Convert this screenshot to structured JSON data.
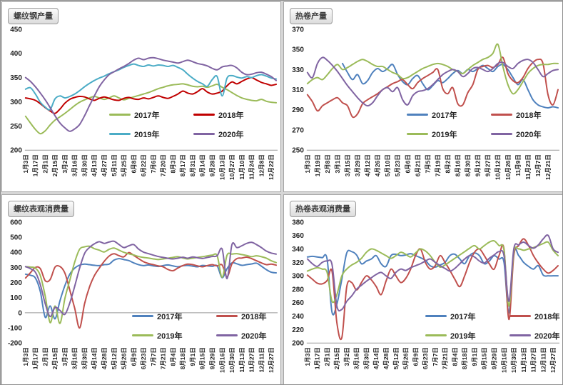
{
  "chart_data": [
    {
      "type": "line",
      "title": "螺纹钢产量",
      "ylim": [
        200,
        450
      ],
      "y_ticks": [
        450,
        400,
        350,
        300,
        250,
        200
      ],
      "axis_line_value": 200,
      "grid": false,
      "legend_position": "inside-lower-center",
      "x": [
        "1月3日",
        "1月17日",
        "2月1日",
        "2月15日",
        "3月2日",
        "3月16日",
        "3月30日",
        "4月13日",
        "4月27日",
        "5月11日",
        "5月25日",
        "6月8日",
        "6月22日",
        "7月6日",
        "7月20日",
        "8月3日",
        "8月17日",
        "8月31日",
        "9月14日",
        "9月28日",
        "10月13日",
        "10月27日",
        "11月10日",
        "11月24日",
        "12月8日",
        "12月22日"
      ],
      "points_per_label": 2,
      "series": [
        {
          "name": "2017年",
          "color": "#9BBB59",
          "values": [
            270,
            256,
            243,
            234,
            240,
            252,
            262,
            269,
            276,
            284,
            292,
            299,
            304,
            308,
            311,
            308,
            305,
            308,
            312,
            308,
            304,
            307,
            310,
            313,
            316,
            319,
            323,
            327,
            330,
            333,
            335,
            336,
            337,
            335,
            332,
            331,
            332,
            330,
            333,
            336,
            330,
            325,
            319,
            313,
            308,
            305,
            303,
            302,
            305,
            301,
            299,
            298
          ]
        },
        {
          "name": "2018年",
          "color": "#C00000",
          "values": [
            308,
            306,
            303,
            296,
            288,
            281,
            276,
            285,
            297,
            305,
            309,
            311,
            310,
            306,
            303,
            307,
            310,
            307,
            304,
            303,
            307,
            309,
            306,
            305,
            308,
            306,
            309,
            312,
            309,
            307,
            311,
            316,
            322,
            318,
            316,
            321,
            327,
            320,
            316,
            318,
            322,
            333,
            341,
            337,
            342,
            347,
            350,
            345,
            340,
            337,
            334,
            336
          ]
        },
        {
          "name": "2019年",
          "color": "#4BACC6",
          "values": [
            326,
            329,
            316,
            299,
            289,
            284,
            306,
            312,
            308,
            311,
            316,
            323,
            331,
            338,
            344,
            349,
            353,
            358,
            362,
            366,
            371,
            375,
            378,
            375,
            373,
            376,
            374,
            376,
            375,
            373,
            375,
            371,
            366,
            357,
            349,
            342,
            337,
            332,
            346,
            352,
            312,
            349,
            354,
            351,
            349,
            352,
            350,
            354,
            356,
            353,
            349,
            347
          ]
        },
        {
          "name": "2020年",
          "color": "#8064A2",
          "values": [
            350,
            342,
            331,
            318,
            304,
            288,
            271,
            256,
            246,
            239,
            244,
            253,
            271,
            292,
            312,
            331,
            345,
            356,
            362,
            368,
            373,
            379,
            386,
            390,
            387,
            390,
            391,
            389,
            386,
            384,
            382,
            380,
            383,
            386,
            383,
            379,
            377,
            374,
            369,
            366,
            372,
            374,
            375,
            370,
            361,
            356,
            357,
            360,
            361,
            357,
            352,
            344
          ]
        }
      ]
    },
    {
      "type": "line",
      "title": "热卷产量",
      "ylim": [
        250,
        370
      ],
      "y_ticks": [
        370,
        350,
        330,
        310,
        290,
        270,
        250
      ],
      "axis_line_value": 250,
      "grid": false,
      "legend_position": "inside-lower-center",
      "x": [
        "1月3日",
        "1月19日",
        "2月8日",
        "3月1日",
        "3月15日",
        "3月29日",
        "4月12日",
        "4月26日",
        "5月10日",
        "5月23日",
        "6月6日",
        "6月21日",
        "7月5日",
        "7月19日",
        "8月2日",
        "8月16日",
        "8月30日",
        "9月12日",
        "9月27日",
        "10月12日",
        "10月26日",
        "11月9日",
        "11月23日",
        "12月7日",
        "12月21日"
      ],
      "points_per_label": 2,
      "series": [
        {
          "name": "2017年",
          "color": "#4F81BD",
          "values": [
            null,
            null,
            null,
            null,
            null,
            null,
            null,
            336,
            327,
            320,
            325,
            316,
            319,
            327,
            331,
            328,
            331,
            335,
            325,
            318,
            315,
            321,
            324,
            316,
            310,
            314,
            319,
            317,
            321,
            326,
            329,
            326,
            330,
            328,
            331,
            334,
            331,
            328,
            333,
            335,
            330,
            322,
            315,
            320,
            310,
            300,
            295,
            293,
            292,
            293,
            292
          ]
        },
        {
          "name": "2018年",
          "color": "#C0504D",
          "values": [
            305,
            298,
            289,
            294,
            297,
            300,
            302,
            297,
            294,
            283,
            286,
            296,
            300,
            303,
            306,
            310,
            313,
            316,
            318,
            320,
            315,
            311,
            317,
            321,
            324,
            327,
            330,
            311,
            306,
            312,
            296,
            295,
            307,
            315,
            330,
            333,
            334,
            332,
            335,
            342,
            326,
            319,
            317,
            322,
            331,
            337,
            340,
            336,
            305,
            295,
            310
          ]
        },
        {
          "name": "2019年",
          "color": "#9BBB59",
          "values": [
            316,
            320,
            322,
            320,
            325,
            331,
            335,
            330,
            332,
            335,
            338,
            340,
            338,
            335,
            333,
            333,
            330,
            327,
            325,
            321,
            322,
            325,
            328,
            331,
            333,
            335,
            336,
            335,
            333,
            330,
            328,
            326,
            330,
            334,
            337,
            340,
            342,
            346,
            355,
            333,
            315,
            306,
            310,
            318,
            326,
            331,
            334,
            335,
            335,
            336,
            336
          ]
        },
        {
          "name": "2020年",
          "color": "#8064A2",
          "values": [
            327,
            322,
            336,
            342,
            339,
            334,
            328,
            321,
            314,
            308,
            302,
            297,
            294,
            297,
            304,
            310,
            312,
            308,
            312,
            300,
            295,
            304,
            308,
            309,
            311,
            315,
            320,
            325,
            328,
            330,
            328,
            323,
            326,
            331,
            332,
            330,
            328,
            331,
            336,
            337,
            333,
            331,
            336,
            339,
            340,
            337,
            330,
            323,
            326,
            329,
            330
          ]
        }
      ]
    },
    {
      "type": "line",
      "title": "螺纹表观消费量",
      "ylim": [
        -200,
        600
      ],
      "y_ticks": [
        600,
        500,
        400,
        300,
        200,
        100,
        0,
        -100,
        -200
      ],
      "axis_line_value": 0,
      "grid": false,
      "legend_position": "inside-lower-center",
      "x": [
        "1月3日",
        "1月17日",
        "2月1日",
        "2月15日",
        "3月2日",
        "3月16日",
        "3月30日",
        "4月14日",
        "4月28日",
        "5月12日",
        "5月26日",
        "6月9日",
        "6月23日",
        "7月7日",
        "7月21日",
        "8月4日",
        "8月18日",
        "9月1日",
        "9月15日",
        "9月29日",
        "10月16日",
        "10月30日",
        "11月13日",
        "11月27日",
        "12月11日",
        "12月27日"
      ],
      "points_per_label": 2,
      "series": [
        {
          "name": "2017年",
          "color": "#4F81BD",
          "values": [
            255,
            248,
            230,
            140,
            -30,
            45,
            -40,
            80,
            180,
            255,
            295,
            315,
            322,
            318,
            314,
            312,
            318,
            322,
            348,
            358,
            352,
            345,
            330,
            318,
            312,
            316,
            310,
            306,
            312,
            316,
            310,
            304,
            311,
            313,
            308,
            304,
            313,
            310,
            307,
            310,
            232,
            292,
            330,
            324,
            314,
            318,
            323,
            328,
            308,
            285,
            268,
            264
          ]
        },
        {
          "name": "2018年",
          "color": "#C0504D",
          "values": [
            230,
            265,
            300,
            292,
            212,
            220,
            302,
            306,
            262,
            150,
            30,
            -100,
            60,
            170,
            245,
            295,
            340,
            375,
            390,
            378,
            370,
            398,
            380,
            358,
            338,
            326,
            318,
            310,
            304,
            286,
            278,
            296,
            312,
            322,
            318,
            310,
            304,
            312,
            318,
            310,
            316,
            238,
            324,
            358,
            362,
            368,
            358,
            344,
            330,
            318,
            322,
            315
          ]
        },
        {
          "name": "2019年",
          "color": "#9BBB59",
          "values": [
            305,
            302,
            295,
            245,
            110,
            -65,
            45,
            -70,
            95,
            215,
            335,
            420,
            436,
            440,
            424,
            414,
            402,
            420,
            428,
            414,
            400,
            390,
            382,
            372,
            366,
            362,
            356,
            352,
            356,
            361,
            366,
            371,
            362,
            356,
            361,
            366,
            371,
            376,
            381,
            377,
            235,
            381,
            388,
            391,
            385,
            379,
            371,
            377,
            371,
            361,
            344,
            332
          ]
        },
        {
          "name": "2020年",
          "color": "#8064A2",
          "values": [
            305,
            292,
            268,
            185,
            60,
            -25,
            35,
            15,
            -10,
            65,
            175,
            295,
            392,
            432,
            456,
            470,
            459,
            468,
            473,
            452,
            431,
            443,
            451,
            421,
            401,
            391,
            381,
            372,
            366,
            360,
            356,
            361,
            367,
            361,
            369,
            364,
            359,
            366,
            372,
            377,
            421,
            226,
            451,
            431,
            443,
            459,
            466,
            451,
            431,
            408,
            395,
            388
          ]
        }
      ]
    },
    {
      "type": "line",
      "title": "热卷表观消费量",
      "ylim": [
        200,
        380
      ],
      "y_ticks": [
        380,
        360,
        340,
        320,
        300,
        280,
        260,
        240,
        220,
        200
      ],
      "axis_line_value": 200,
      "grid": false,
      "legend_position": "inside-lower-center",
      "x": [
        "1月3日",
        "1月17日",
        "2月1日",
        "2月15日",
        "3月2日",
        "3月16日",
        "3月30日",
        "4月14日",
        "4月28日",
        "5月12日",
        "5月26日",
        "6月9日",
        "6月23日",
        "7月7日",
        "7月21日",
        "8月4日",
        "8月18日",
        "9月1日",
        "9月15日",
        "9月29日",
        "10月16日",
        "10月30日",
        "11月13日",
        "11月27日",
        "12月11日",
        "12月27日"
      ],
      "points_per_label": 2,
      "series": [
        {
          "name": "2017年",
          "color": "#4F81BD",
          "values": [
            328,
            329,
            328,
            327,
            325,
            246,
            258,
            295,
            334,
            336,
            331,
            318,
            322,
            325,
            330,
            318,
            314,
            330,
            332,
            330,
            331,
            333,
            330,
            327,
            323,
            315,
            313,
            316,
            320,
            330,
            332,
            325,
            318,
            330,
            334,
            330,
            318,
            322,
            330,
            325,
            320,
            245,
            335,
            330,
            320,
            314,
            310,
            315,
            301,
            300,
            300,
            300
          ]
        },
        {
          "name": "2018年",
          "color": "#C0504D",
          "values": [
            301,
            295,
            289,
            288,
            293,
            307,
            230,
            208,
            284,
            290,
            279,
            290,
            300,
            294,
            284,
            272,
            292,
            310,
            300,
            290,
            296,
            310,
            330,
            340,
            320,
            310,
            315,
            330,
            320,
            308,
            295,
            284,
            300,
            320,
            335,
            340,
            330,
            318,
            310,
            330,
            340,
            235,
            330,
            345,
            355,
            345,
            330,
            319,
            310,
            304,
            308,
            315
          ]
        },
        {
          "name": "2019年",
          "color": "#9BBB59",
          "values": [
            307,
            310,
            312,
            310,
            305,
            262,
            272,
            300,
            310,
            316,
            320,
            326,
            335,
            340,
            338,
            334,
            330,
            326,
            330,
            335,
            332,
            328,
            334,
            340,
            337,
            330,
            320,
            313,
            316,
            321,
            326,
            331,
            336,
            341,
            345,
            340,
            345,
            350,
            352,
            345,
            338,
            255,
            335,
            340,
            338,
            340,
            342,
            345,
            348,
            350,
            338,
            330
          ]
        },
        {
          "name": "2020年",
          "color": "#8064A2",
          "values": [
            325,
            318,
            314,
            320,
            322,
            317,
            255,
            250,
            262,
            270,
            280,
            286,
            292,
            297,
            302,
            305,
            300,
            296,
            305,
            310,
            308,
            312,
            315,
            318,
            322,
            325,
            320,
            315,
            311,
            307,
            311,
            318,
            325,
            330,
            328,
            322,
            319,
            326,
            331,
            336,
            330,
            262,
            340,
            346,
            350,
            345,
            341,
            346,
            355,
            360,
            340,
            335
          ]
        }
      ]
    }
  ],
  "style": {
    "axis_color": "#9a9a9a",
    "tick_text_color": "#1f1f1f",
    "panel_background": "#ffffff"
  }
}
